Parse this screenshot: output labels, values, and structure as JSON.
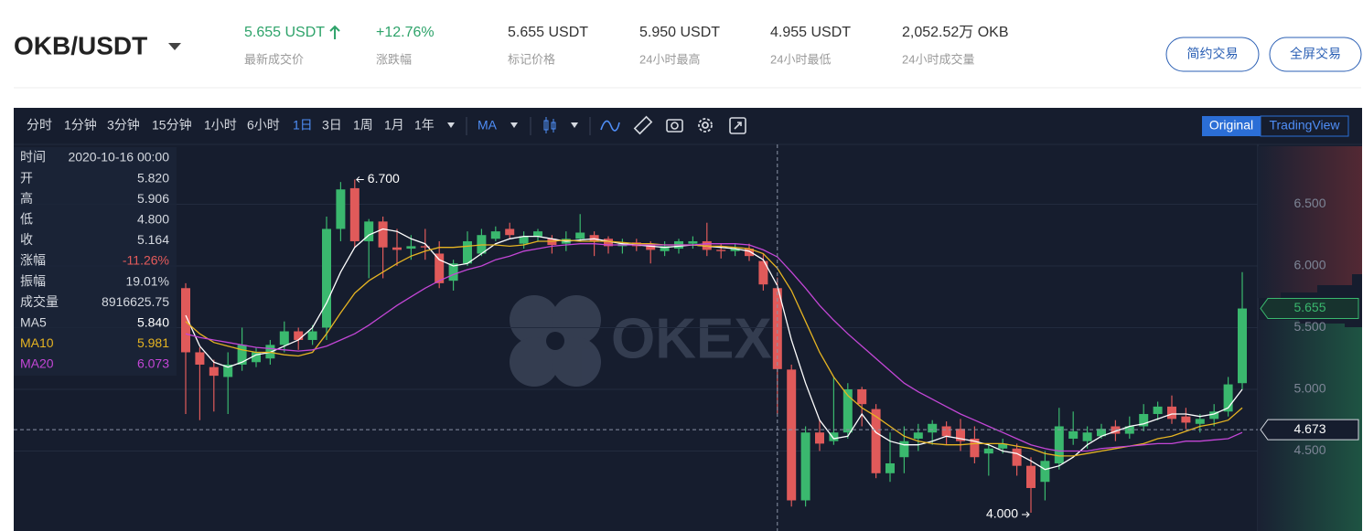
{
  "header": {
    "pair": "OKB/USDT",
    "stats": [
      {
        "value": "5.655 USDT",
        "label": "最新成交价",
        "color": "#2ea36a"
      },
      {
        "value": "+12.76%",
        "label": "涨跌幅",
        "color": "#2ea36a"
      },
      {
        "value": "5.655 USDT",
        "label": "标记价格",
        "color": "#333333"
      },
      {
        "value": "5.950 USDT",
        "label": "24小时最高",
        "color": "#333333"
      },
      {
        "value": "4.955 USDT",
        "label": "24小时最低",
        "color": "#333333"
      },
      {
        "value": "2,052.52万 OKB",
        "label": "24小时成交量",
        "color": "#333333"
      }
    ],
    "buttons": [
      "简约交易",
      "全屏交易"
    ]
  },
  "toolbar": {
    "intervals": [
      "分时",
      "1分钟",
      "3分钟",
      "15分钟",
      "1小时",
      "6小时",
      "1日",
      "3日",
      "1周",
      "1月",
      "1年"
    ],
    "active_interval": 6,
    "indicator": "MA",
    "views": [
      "Original",
      "TradingView"
    ]
  },
  "info_panel": {
    "rows": [
      {
        "label": "时间",
        "value": "2020-10-16 00:00",
        "color": "#d5d9e0"
      },
      {
        "label": "开",
        "value": "5.820",
        "color": "#d5d9e0"
      },
      {
        "label": "高",
        "value": "5.906",
        "color": "#d5d9e0"
      },
      {
        "label": "低",
        "value": "4.800",
        "color": "#d5d9e0"
      },
      {
        "label": "收",
        "value": "5.164",
        "color": "#d5d9e0"
      },
      {
        "label": "涨幅",
        "value": "-11.26%",
        "color": "#e55b5b"
      },
      {
        "label": "振幅",
        "value": "19.01%",
        "color": "#d5d9e0"
      },
      {
        "label": "成交量",
        "value": "8916625.75",
        "color": "#d5d9e0"
      },
      {
        "label": "MA5",
        "value": "5.840",
        "color": "#ffffff"
      },
      {
        "label": "MA10",
        "value": "5.981",
        "color": "#e6b422"
      },
      {
        "label": "MA20",
        "value": "6.073",
        "color": "#c346d6"
      }
    ]
  },
  "chart": {
    "type": "candlestick",
    "watermark": "OKEX",
    "ylim": [
      3.874,
      6.97
    ],
    "yticks": [
      {
        "value": 4.5,
        "label": "4.500"
      },
      {
        "value": 5,
        "label": "5.000"
      },
      {
        "value": 5.5,
        "label": "5.500"
      },
      {
        "value": 6,
        "label": "6.000"
      },
      {
        "value": 6.5,
        "label": "6.500"
      }
    ],
    "up_color": "#3ab86e",
    "down_color": "#e05a5a",
    "crosshair_index": 42,
    "open": [
      5.82,
      5.3,
      5.18,
      5.1,
      5.2,
      5.22,
      5.25,
      5.36,
      5.47,
      5.4,
      5.5,
      6.3,
      6.63,
      6.2,
      6.36,
      6.15,
      6.14,
      6.16,
      6.1,
      5.88,
      6.02,
      6.1,
      6.22,
      6.3,
      6.18,
      6.24,
      6.22,
      6.18,
      6.22,
      6.25,
      6.22,
      6.16,
      6.19,
      6.17,
      6.12,
      6.14,
      6.18,
      6.2,
      6.13,
      6.12,
      6.14,
      6.04,
      5.82,
      5.16,
      4.1,
      4.65,
      4.58,
      4.65,
      5.0,
      4.84,
      4.32,
      4.45,
      4.6,
      4.65,
      4.7,
      4.68,
      4.6,
      4.48,
      4.52,
      4.52,
      4.38,
      4.25,
      4.4,
      4.6,
      4.58,
      4.62,
      4.7,
      4.64,
      4.7,
      4.8,
      4.86,
      4.78,
      4.72,
      4.76,
      4.82,
      5.05
    ],
    "high": [
      5.86,
      5.34,
      5.24,
      5.3,
      5.5,
      5.34,
      5.4,
      5.55,
      5.5,
      5.52,
      6.4,
      6.68,
      6.7,
      6.38,
      6.4,
      6.3,
      6.25,
      6.3,
      6.2,
      6.05,
      6.28,
      6.3,
      6.32,
      6.35,
      6.28,
      6.3,
      6.25,
      6.28,
      6.42,
      6.28,
      6.24,
      6.22,
      6.22,
      6.2,
      6.2,
      6.22,
      6.24,
      6.35,
      6.18,
      6.18,
      6.18,
      6.1,
      5.906,
      5.2,
      4.7,
      4.75,
      5.1,
      5.05,
      5.02,
      4.88,
      4.65,
      4.7,
      4.72,
      4.75,
      4.74,
      4.76,
      4.7,
      4.56,
      4.6,
      4.56,
      4.45,
      4.5,
      4.85,
      4.82,
      4.7,
      4.72,
      4.75,
      4.78,
      4.88,
      4.9,
      4.95,
      4.85,
      4.8,
      4.88,
      5.1,
      5.95
    ],
    "low": [
      4.8,
      4.75,
      4.82,
      4.8,
      5.15,
      5.18,
      5.2,
      5.3,
      5.32,
      5.36,
      5.4,
      6.2,
      6.15,
      5.9,
      5.9,
      6.0,
      6.05,
      6.05,
      5.82,
      5.8,
      6.0,
      6.08,
      6.2,
      6.22,
      6.14,
      6.2,
      6.1,
      6.12,
      6.2,
      6.08,
      6.1,
      6.1,
      6.12,
      6.02,
      6.08,
      6.1,
      6.14,
      6.08,
      6.06,
      6.08,
      6.04,
      5.8,
      4.8,
      4.05,
      4.05,
      4.5,
      4.55,
      4.6,
      4.7,
      4.28,
      4.25,
      4.32,
      4.5,
      4.55,
      4.55,
      4.5,
      4.4,
      4.3,
      4.48,
      4.3,
      4.0,
      4.1,
      4.35,
      4.55,
      4.52,
      4.6,
      4.58,
      4.6,
      4.66,
      4.75,
      4.72,
      4.68,
      4.65,
      4.7,
      4.78,
      5.0
    ],
    "close": [
      5.3,
      5.2,
      5.11,
      5.2,
      5.36,
      5.3,
      5.36,
      5.47,
      5.4,
      5.47,
      6.3,
      6.62,
      6.2,
      6.36,
      6.15,
      6.13,
      6.16,
      6.15,
      5.86,
      6.02,
      6.2,
      6.25,
      6.28,
      6.25,
      6.24,
      6.28,
      6.17,
      6.22,
      6.27,
      6.2,
      6.16,
      6.18,
      6.16,
      6.13,
      6.16,
      6.2,
      6.2,
      6.13,
      6.12,
      6.14,
      6.08,
      5.85,
      5.164,
      4.1,
      4.65,
      4.56,
      4.65,
      5.0,
      4.88,
      4.32,
      4.4,
      4.58,
      4.65,
      4.72,
      4.62,
      4.58,
      4.45,
      4.52,
      4.56,
      4.38,
      4.2,
      4.42,
      4.7,
      4.66,
      4.65,
      4.68,
      4.64,
      4.7,
      4.8,
      4.86,
      4.76,
      4.73,
      4.76,
      4.82,
      5.04,
      5.655
    ],
    "series": [
      {
        "name": "MA5",
        "color": "#ffffff",
        "values": [
          5.6,
          5.35,
          5.22,
          5.18,
          5.22,
          5.28,
          5.3,
          5.35,
          5.4,
          5.5,
          5.7,
          5.95,
          6.15,
          6.25,
          6.3,
          6.28,
          6.22,
          6.18,
          6.05,
          6.0,
          6.02,
          6.1,
          6.18,
          6.22,
          6.24,
          6.24,
          6.22,
          6.2,
          6.21,
          6.22,
          6.2,
          6.18,
          6.17,
          6.16,
          6.15,
          6.16,
          6.17,
          6.16,
          6.15,
          6.14,
          6.12,
          6.05,
          5.84,
          5.4,
          5.05,
          4.75,
          4.6,
          4.62,
          4.8,
          4.65,
          4.58,
          4.55,
          4.55,
          4.58,
          4.62,
          4.6,
          4.58,
          4.55,
          4.5,
          4.48,
          4.42,
          4.35,
          4.38,
          4.45,
          4.55,
          4.62,
          4.66,
          4.7,
          4.72,
          4.76,
          4.8,
          4.8,
          4.78,
          4.8,
          4.85,
          5.0
        ]
      },
      {
        "name": "MA10",
        "color": "#e6b422",
        "values": [
          5.55,
          5.45,
          5.38,
          5.35,
          5.32,
          5.3,
          5.3,
          5.28,
          5.27,
          5.3,
          5.45,
          5.62,
          5.78,
          5.88,
          5.95,
          6.02,
          6.08,
          6.12,
          6.15,
          6.15,
          6.16,
          6.17,
          6.17,
          6.16,
          6.17,
          6.2,
          6.2,
          6.21,
          6.2,
          6.2,
          6.2,
          6.19,
          6.18,
          6.18,
          6.17,
          6.17,
          6.17,
          6.16,
          6.16,
          6.15,
          6.14,
          6.1,
          5.981,
          5.8,
          5.55,
          5.3,
          5.1,
          4.95,
          4.85,
          4.78,
          4.7,
          4.62,
          4.58,
          4.56,
          4.55,
          4.55,
          4.56,
          4.56,
          4.56,
          4.54,
          4.52,
          4.48,
          4.46,
          4.46,
          4.48,
          4.5,
          4.52,
          4.54,
          4.56,
          4.6,
          4.62,
          4.66,
          4.7,
          4.72,
          4.75,
          4.85
        ]
      },
      {
        "name": "MA20",
        "color": "#c346d6",
        "values": [
          5.45,
          5.42,
          5.4,
          5.38,
          5.36,
          5.34,
          5.33,
          5.32,
          5.31,
          5.32,
          5.35,
          5.4,
          5.45,
          5.52,
          5.6,
          5.68,
          5.75,
          5.82,
          5.88,
          5.93,
          5.97,
          6.0,
          6.05,
          6.08,
          6.12,
          6.14,
          6.16,
          6.17,
          6.18,
          6.18,
          6.17,
          6.17,
          6.17,
          6.17,
          6.17,
          6.17,
          6.17,
          6.18,
          6.18,
          6.18,
          6.17,
          6.13,
          6.073,
          5.95,
          5.82,
          5.68,
          5.56,
          5.45,
          5.35,
          5.25,
          5.15,
          5.05,
          4.98,
          4.92,
          4.86,
          4.8,
          4.75,
          4.7,
          4.65,
          4.6,
          4.55,
          4.52,
          4.5,
          4.5,
          4.5,
          4.52,
          4.53,
          4.54,
          4.55,
          4.56,
          4.56,
          4.58,
          4.58,
          4.59,
          4.6,
          4.65
        ]
      }
    ],
    "max_marker": {
      "value": 6.7,
      "label": "6.700",
      "index": 12
    },
    "min_marker": {
      "value": 4.0,
      "label": "4.000",
      "index": 60
    },
    "last_price": {
      "value": 5.655,
      "label": "5.655"
    },
    "crosshair_price": {
      "value": 4.673,
      "label": "4.673"
    }
  }
}
